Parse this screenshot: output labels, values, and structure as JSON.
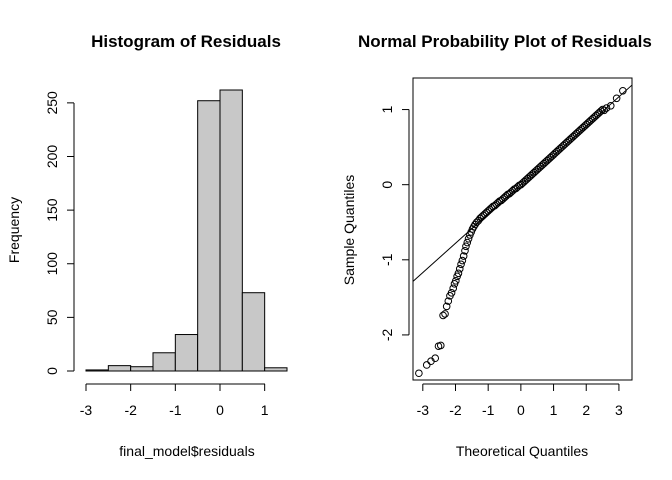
{
  "chart_data": [
    {
      "type": "bar",
      "title": "Histogram of Residuals",
      "xlabel": "final_model$residuals",
      "ylabel": "Frequency",
      "bins": [
        {
          "from": -3.0,
          "to": -2.5,
          "count": 1
        },
        {
          "from": -2.5,
          "to": -2.0,
          "count": 5
        },
        {
          "from": -2.0,
          "to": -1.5,
          "count": 4
        },
        {
          "from": -1.5,
          "to": -1.0,
          "count": 17
        },
        {
          "from": -1.0,
          "to": -0.5,
          "count": 34
        },
        {
          "from": -0.5,
          "to": 0.0,
          "count": 252
        },
        {
          "from": 0.0,
          "to": 0.5,
          "count": 262
        },
        {
          "from": 0.5,
          "to": 1.0,
          "count": 73
        },
        {
          "from": 1.0,
          "to": 1.5,
          "count": 3
        }
      ],
      "xticks": [
        "-3",
        "-2",
        "-1",
        "0",
        "1"
      ],
      "yticks": [
        "0",
        "50",
        "100",
        "150",
        "200",
        "250"
      ],
      "xlim": [
        -3,
        1.5
      ],
      "ylim": [
        0,
        262
      ],
      "colors": {
        "bar_fill": "#c8c8c8",
        "bar_stroke": "#000000"
      }
    },
    {
      "type": "scatter",
      "title": "Normal Probability Plot of Residuals",
      "xlabel": "Theoretical Quantiles",
      "ylabel": "Sample Quantiles",
      "xticks": [
        "-3",
        "-2",
        "-1",
        "0",
        "1",
        "2",
        "3"
      ],
      "yticks": [
        "-2",
        "-1",
        "0",
        "1"
      ],
      "xlim": [
        -3.3,
        3.4
      ],
      "ylim": [
        -2.6,
        1.42
      ],
      "reference_line": {
        "intercept": 0.0,
        "slope": 0.39
      },
      "points": [
        [
          -3.12,
          -2.51
        ],
        [
          -2.88,
          -2.4
        ],
        [
          -2.75,
          -2.35
        ],
        [
          -2.62,
          -2.31
        ],
        [
          -2.52,
          -2.15
        ],
        [
          -2.45,
          -2.14
        ],
        [
          -2.38,
          -1.74
        ],
        [
          -2.32,
          -1.72
        ],
        [
          -2.27,
          -1.62
        ],
        [
          -2.22,
          -1.55
        ],
        [
          -2.17,
          -1.48
        ],
        [
          -2.12,
          -1.44
        ],
        [
          -2.07,
          -1.38
        ],
        [
          -2.03,
          -1.32
        ],
        [
          -1.99,
          -1.28
        ],
        [
          -1.95,
          -1.22
        ],
        [
          -1.91,
          -1.18
        ],
        [
          -1.87,
          -1.12
        ],
        [
          -1.83,
          -1.06
        ],
        [
          -1.79,
          -1.01
        ],
        [
          -1.75,
          -0.95
        ],
        [
          -1.71,
          -0.88
        ],
        [
          -1.68,
          -0.82
        ],
        [
          -1.64,
          -0.77
        ],
        [
          -1.6,
          -0.72
        ],
        [
          -1.56,
          -0.67
        ],
        [
          -1.52,
          -0.63
        ],
        [
          -1.48,
          -0.59
        ],
        [
          -1.44,
          -0.56
        ],
        [
          -1.4,
          -0.53
        ],
        [
          -1.35,
          -0.5
        ],
        [
          -1.3,
          -0.48
        ],
        [
          -1.25,
          -0.45
        ],
        [
          -1.2,
          -0.43
        ],
        [
          -1.15,
          -0.41
        ],
        [
          -1.1,
          -0.39
        ],
        [
          -1.05,
          -0.37
        ],
        [
          -1.0,
          -0.35
        ],
        [
          -0.95,
          -0.33
        ],
        [
          -0.9,
          -0.31
        ],
        [
          -0.85,
          -0.29
        ],
        [
          -0.8,
          -0.28
        ],
        [
          -0.75,
          -0.26
        ],
        [
          -0.7,
          -0.24
        ],
        [
          -0.65,
          -0.22
        ],
        [
          -0.6,
          -0.21
        ],
        [
          -0.55,
          -0.19
        ],
        [
          -0.5,
          -0.17
        ],
        [
          -0.45,
          -0.15
        ],
        [
          -0.4,
          -0.13
        ],
        [
          -0.35,
          -0.12
        ],
        [
          -0.3,
          -0.1
        ],
        [
          -0.25,
          -0.08
        ],
        [
          -0.2,
          -0.06
        ],
        [
          -0.15,
          -0.05
        ],
        [
          -0.1,
          -0.03
        ],
        [
          -0.05,
          -0.01
        ],
        [
          0.0,
          0.0
        ],
        [
          0.05,
          0.02
        ],
        [
          0.1,
          0.04
        ],
        [
          0.15,
          0.06
        ],
        [
          0.2,
          0.08
        ],
        [
          0.25,
          0.1
        ],
        [
          0.3,
          0.12
        ],
        [
          0.35,
          0.14
        ],
        [
          0.4,
          0.16
        ],
        [
          0.45,
          0.18
        ],
        [
          0.5,
          0.2
        ],
        [
          0.55,
          0.22
        ],
        [
          0.6,
          0.24
        ],
        [
          0.65,
          0.26
        ],
        [
          0.7,
          0.28
        ],
        [
          0.75,
          0.3
        ],
        [
          0.8,
          0.32
        ],
        [
          0.85,
          0.34
        ],
        [
          0.9,
          0.36
        ],
        [
          0.95,
          0.38
        ],
        [
          1.0,
          0.4
        ],
        [
          1.05,
          0.42
        ],
        [
          1.1,
          0.44
        ],
        [
          1.15,
          0.46
        ],
        [
          1.2,
          0.48
        ],
        [
          1.25,
          0.5
        ],
        [
          1.3,
          0.52
        ],
        [
          1.35,
          0.54
        ],
        [
          1.4,
          0.56
        ],
        [
          1.45,
          0.58
        ],
        [
          1.5,
          0.6
        ],
        [
          1.55,
          0.62
        ],
        [
          1.6,
          0.64
        ],
        [
          1.65,
          0.66
        ],
        [
          1.7,
          0.68
        ],
        [
          1.75,
          0.7
        ],
        [
          1.8,
          0.72
        ],
        [
          1.85,
          0.74
        ],
        [
          1.9,
          0.76
        ],
        [
          1.95,
          0.78
        ],
        [
          2.0,
          0.8
        ],
        [
          2.05,
          0.82
        ],
        [
          2.1,
          0.84
        ],
        [
          2.15,
          0.86
        ],
        [
          2.2,
          0.88
        ],
        [
          2.25,
          0.9
        ],
        [
          2.3,
          0.92
        ],
        [
          2.35,
          0.94
        ],
        [
          2.4,
          0.96
        ],
        [
          2.45,
          0.98
        ],
        [
          2.5,
          1.0
        ],
        [
          2.55,
          0.99
        ],
        [
          2.62,
          1.02
        ],
        [
          2.75,
          1.05
        ],
        [
          2.93,
          1.15
        ],
        [
          3.12,
          1.25
        ]
      ]
    }
  ]
}
